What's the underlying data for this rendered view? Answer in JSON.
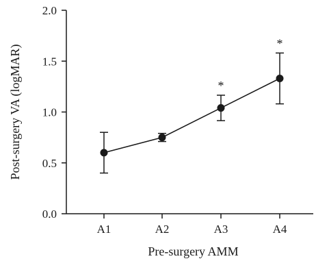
{
  "chart_data": {
    "type": "line",
    "title": "",
    "xlabel": "Pre-surgery AMM",
    "ylabel": "Post-surgery VA (logMAR)",
    "categories": [
      "A1",
      "A2",
      "A3",
      "A4"
    ],
    "series": [
      {
        "values": [
          0.6,
          0.75,
          1.04,
          1.33
        ],
        "error": [
          0.2,
          0.04,
          0.125,
          0.25
        ],
        "significance": [
          "",
          "",
          "*",
          "*"
        ]
      }
    ],
    "ylim": [
      0.0,
      2.0
    ],
    "yticks": [
      "0.0",
      "0.5",
      "1.0",
      "1.5",
      "2.0"
    ],
    "grid": false,
    "marker_color": "#1a1a1a"
  }
}
